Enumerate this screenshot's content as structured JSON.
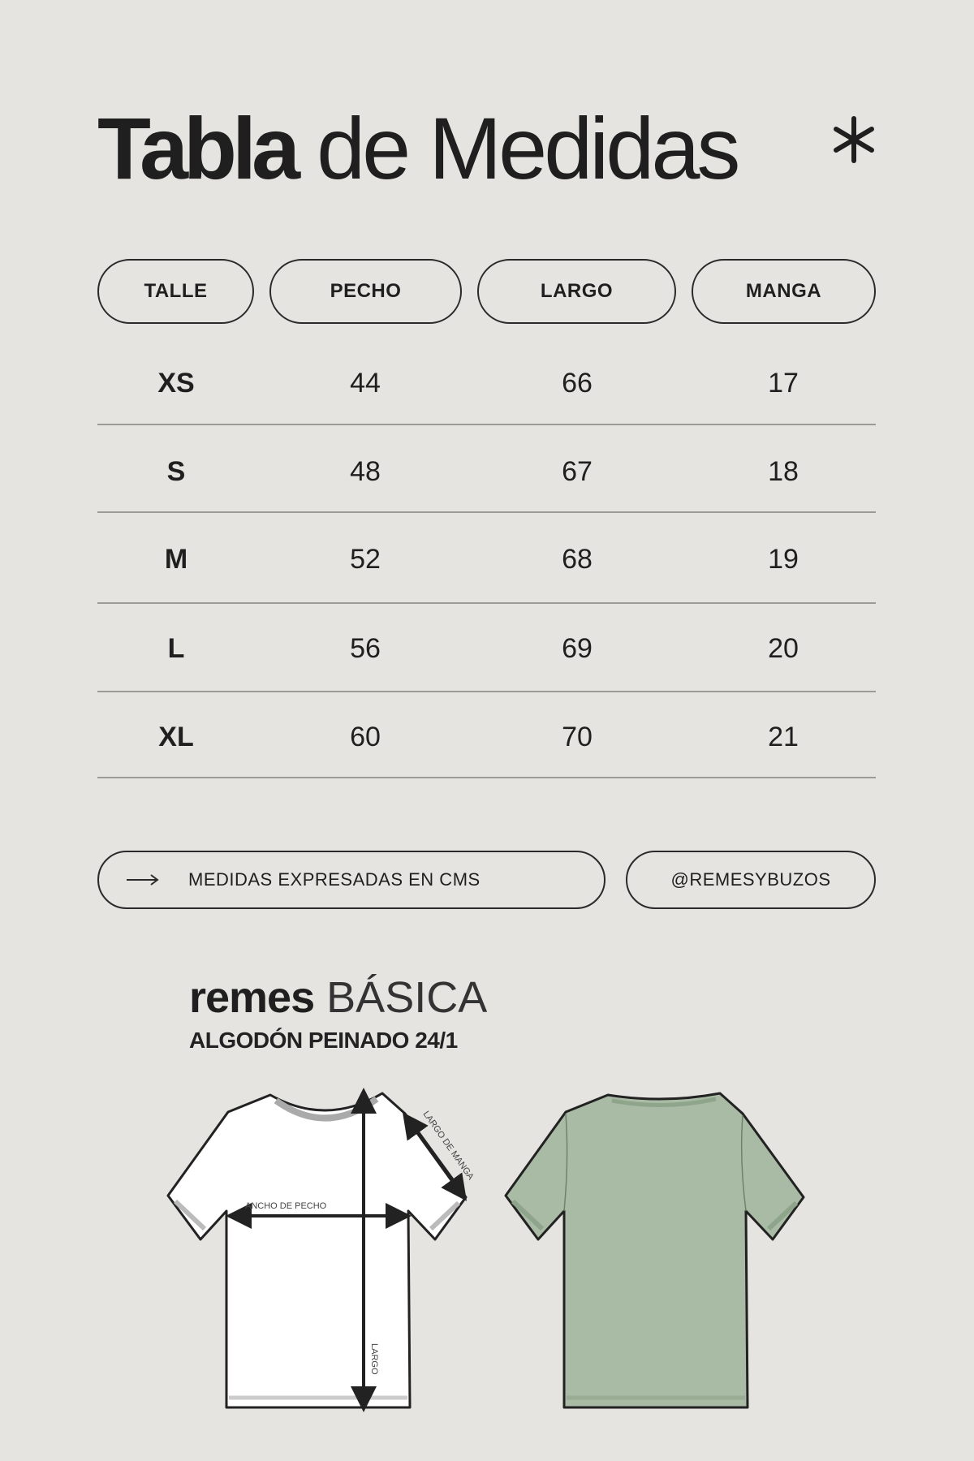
{
  "title": {
    "bold": "Tabla",
    "rest": "de Medidas"
  },
  "columns": [
    "TALLE",
    "PECHO",
    "LARGO",
    "MANGA"
  ],
  "rows": [
    {
      "talle": "XS",
      "pecho": "44",
      "largo": "66",
      "manga": "17"
    },
    {
      "talle": "S",
      "pecho": "48",
      "largo": "67",
      "manga": "18"
    },
    {
      "talle": "M",
      "pecho": "52",
      "largo": "68",
      "manga": "19"
    },
    {
      "talle": "L",
      "pecho": "56",
      "largo": "69",
      "manga": "20"
    },
    {
      "talle": "XL",
      "pecho": "60",
      "largo": "70",
      "manga": "21"
    }
  ],
  "footer": {
    "note": "MEDIDAS EXPRESADAS EN CMS",
    "handle": "@REMESYBUZOS",
    "note_icon": "arrow-right-icon"
  },
  "product": {
    "brand": "remes",
    "model": "BÁSICA",
    "fabric": "ALGODÓN PEINADO 24/1"
  },
  "diagram": {
    "chest_label": "ANCHO DE PECHO",
    "sleeve_label": "LARGO DE MANGA",
    "length_label": "LARGO"
  },
  "colors": {
    "background": "#e5e4e0",
    "text": "#1f1f1f",
    "shirt_back": "#a9bba5",
    "shirt_front": "#ffffff"
  }
}
